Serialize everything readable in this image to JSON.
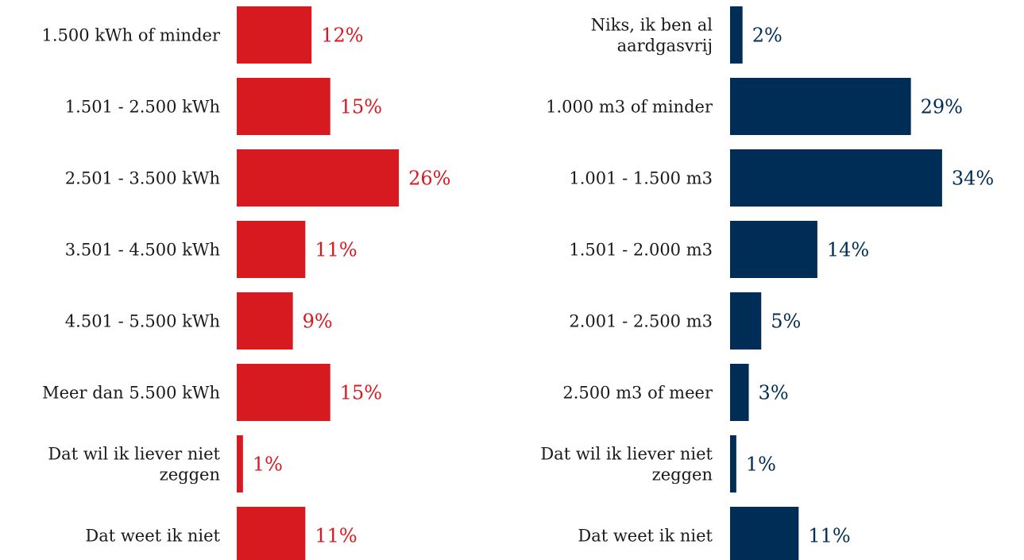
{
  "chart_data": [
    {
      "type": "bar",
      "orientation": "horizontal",
      "title": "",
      "xlabel": "",
      "ylabel": "",
      "xlim": [
        0,
        30
      ],
      "grid": false,
      "legend": "none",
      "color": "#D71920",
      "value_suffix": "%",
      "categories": [
        [
          "1.500 kWh of minder"
        ],
        [
          "1.501 - 2.500 kWh"
        ],
        [
          "2.501 - 3.500 kWh"
        ],
        [
          "3.501 - 4.500 kWh"
        ],
        [
          "4.501 - 5.500 kWh"
        ],
        [
          "Meer dan 5.500 kWh"
        ],
        [
          "Dat wil ik liever niet",
          "zeggen"
        ],
        [
          "Dat weet ik niet"
        ]
      ],
      "values": [
        12,
        15,
        26,
        11,
        9,
        15,
        1,
        11
      ],
      "value_labels": [
        "12%",
        "15%",
        "26%",
        "11%",
        "9%",
        "15%",
        "1%",
        "11%"
      ]
    },
    {
      "type": "bar",
      "orientation": "horizontal",
      "title": "",
      "xlabel": "",
      "ylabel": "",
      "xlim": [
        0,
        30
      ],
      "grid": false,
      "legend": "none",
      "color": "#002D55",
      "value_suffix": "%",
      "categories": [
        [
          "Niks, ik ben al",
          "aardgasvrij"
        ],
        [
          "1.000 m3 of minder"
        ],
        [
          "1.001 - 1.500 m3"
        ],
        [
          "1.501 - 2.000 m3"
        ],
        [
          "2.001 - 2.500 m3"
        ],
        [
          "2.500 m3 of meer"
        ],
        [
          "Dat wil ik liever niet",
          "zeggen"
        ],
        [
          "Dat weet ik niet"
        ]
      ],
      "values": [
        2,
        29,
        34,
        14,
        5,
        3,
        1,
        11
      ],
      "value_labels": [
        "2%",
        "29%",
        "34%",
        "14%",
        "5%",
        "3%",
        "1%",
        "11%"
      ]
    }
  ]
}
